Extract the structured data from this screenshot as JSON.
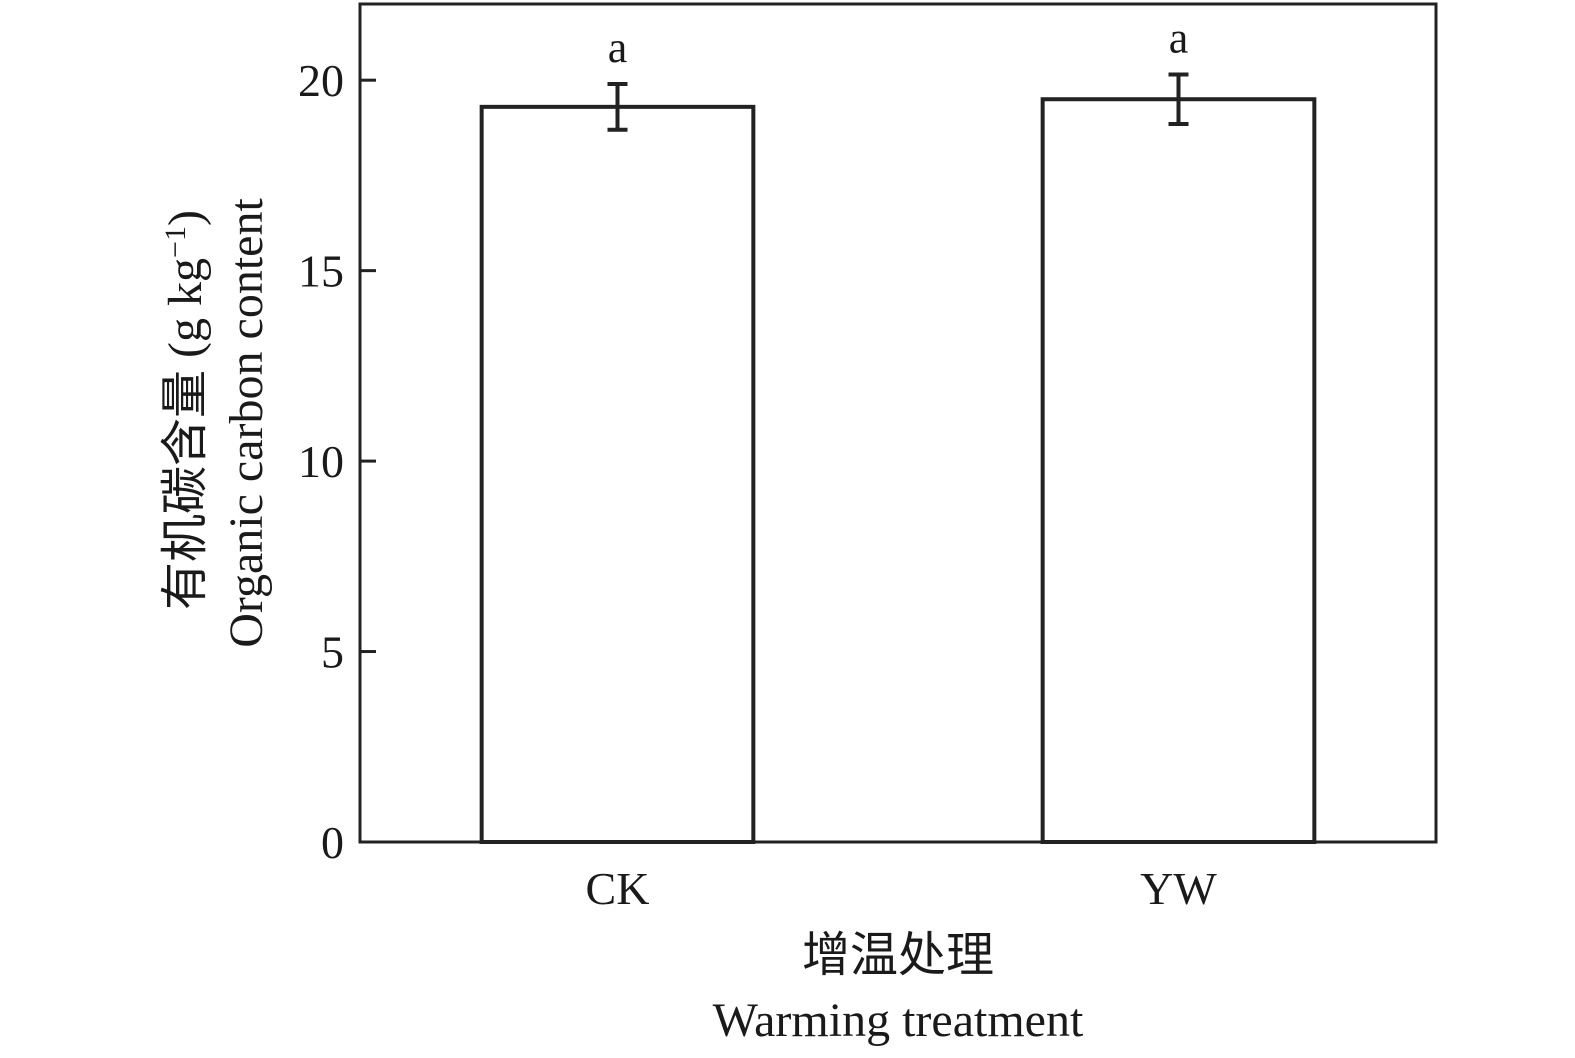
{
  "chart_data": {
    "type": "bar",
    "categories": [
      "CK",
      "YW"
    ],
    "values": [
      19.3,
      19.5
    ],
    "errors": [
      0.6,
      0.65
    ],
    "significance": [
      "a",
      "a"
    ],
    "xlabel_cn": "增温处理",
    "xlabel_en": "Warming treatment",
    "ylabel_cn": "有机碳含量 (g kg",
    "ylabel_sup": "−1",
    "ylabel_close": ")",
    "ylabel_en": "Organic carbon content",
    "ylim": [
      0,
      22
    ],
    "yticks": [
      0,
      5,
      10,
      15,
      20
    ],
    "bar_fill": "#ffffff",
    "bar_stroke": "#222222"
  }
}
